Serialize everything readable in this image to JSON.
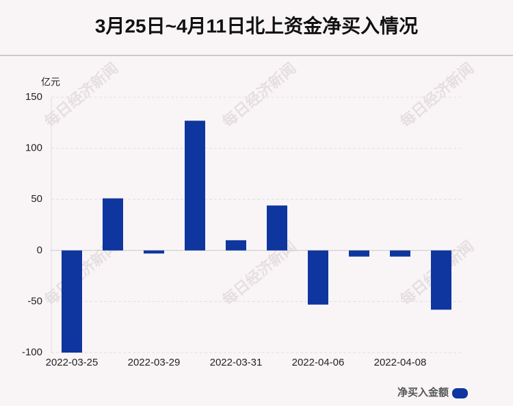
{
  "chart_data": {
    "type": "bar",
    "title": "3月25日~4月11日北上资金净买入情况",
    "y_unit": "亿元",
    "categories": [
      "2022-03-25",
      null,
      "2022-03-29",
      null,
      "2022-03-31",
      null,
      "2022-04-06",
      null,
      "2022-04-08",
      null
    ],
    "series": [
      {
        "name": "净买入金额",
        "color": "#0e369e",
        "values": [
          -100,
          51,
          -3,
          127,
          10,
          44,
          -53,
          -6,
          -6,
          -58
        ]
      }
    ],
    "ylim": [
      -100,
      150
    ],
    "yticks": [
      -100,
      -50,
      0,
      50,
      100,
      150
    ],
    "grid": true,
    "legend": "bottom-right",
    "watermark": "每日经济新闻"
  }
}
